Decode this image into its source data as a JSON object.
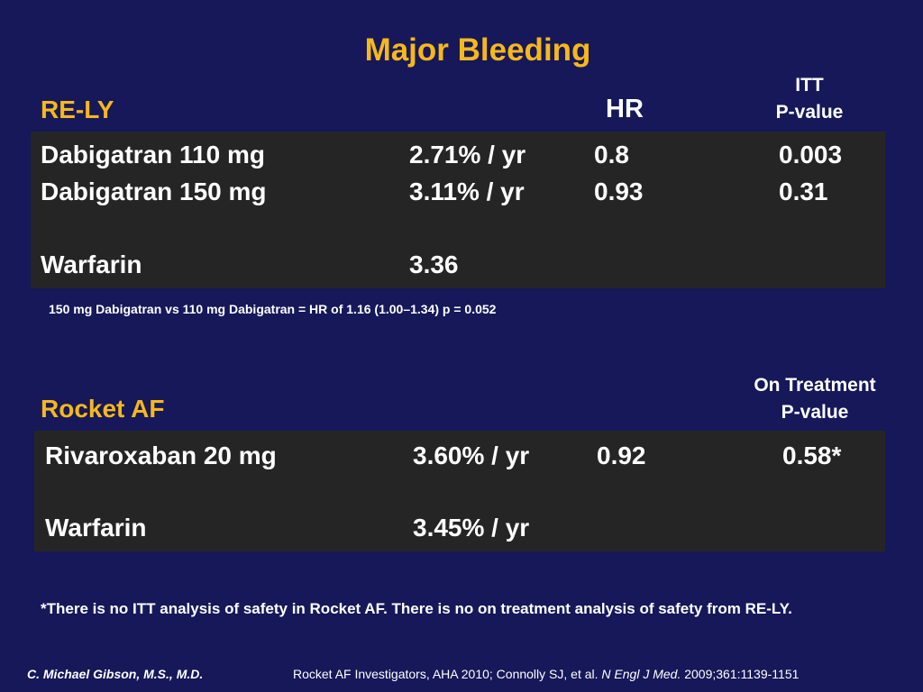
{
  "title": "Major Bleeding",
  "re_ly": {
    "section_title": "RE-LY",
    "hr_header": "HR",
    "pvalue_header_line1": "ITT",
    "pvalue_header_line2": "P-value",
    "rows": [
      {
        "drug": "Dabigatran 110 mg",
        "rate": "2.71% / yr",
        "hr": "0.8",
        "p": "0.003"
      },
      {
        "drug": "Dabigatran 150 mg",
        "rate": "3.11% / yr",
        "hr": "0.93",
        "p": "0.31"
      },
      {
        "drug": "Warfarin",
        "rate": "3.36",
        "hr": "",
        "p": ""
      }
    ],
    "note": "150 mg Dabigatran vs 110 mg Dabigatran = HR of 1.16 (1.00–1.34) p = 0.052"
  },
  "rocket": {
    "section_title": "Rocket AF",
    "pvalue_header_line1": "On Treatment",
    "pvalue_header_line2": "P-value",
    "rows": [
      {
        "drug": "Rivaroxaban 20 mg",
        "rate": "3.60% / yr",
        "hr": "0.92",
        "p": "0.58*"
      },
      {
        "drug": "Warfarin",
        "rate": "3.45% / yr",
        "hr": "",
        "p": ""
      }
    ]
  },
  "footnote": "*There is no ITT analysis of safety in Rocket AF. There is no on treatment analysis of safety from RE-LY.",
  "footer": {
    "author": "C. Michael Gibson, M.S., M.D.",
    "citation_part1": "Rocket AF Investigators, AHA 2010; Connolly SJ, et al. ",
    "citation_journal": "N Engl J Med.",
    "citation_part2": " 2009;361:1139-1151"
  },
  "colors": {
    "background": "#16185a",
    "accent": "#f6b81a",
    "table_box": "#252525",
    "text": "#ffffff"
  }
}
